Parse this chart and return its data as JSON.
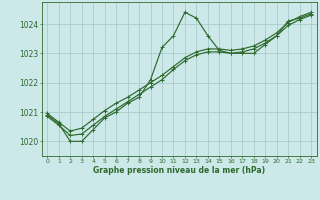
{
  "xlabel": "Graphe pression niveau de la mer (hPa)",
  "bg_color": "#cce8e8",
  "grid_color": "#aacccc",
  "line_color": "#2d6a2d",
  "marker_color": "#2d6a2d",
  "ylim": [
    1019.5,
    1024.75
  ],
  "xlim": [
    -0.5,
    23.5
  ],
  "yticks": [
    1020,
    1021,
    1022,
    1023,
    1024
  ],
  "xticks": [
    0,
    1,
    2,
    3,
    4,
    5,
    6,
    7,
    8,
    9,
    10,
    11,
    12,
    13,
    14,
    15,
    16,
    17,
    18,
    19,
    20,
    21,
    22,
    23
  ],
  "series": [
    [
      1020.9,
      1020.6,
      1020.0,
      1020.0,
      1020.4,
      1020.8,
      1021.0,
      1021.3,
      1021.5,
      1022.1,
      1023.2,
      1023.6,
      1024.4,
      1024.2,
      1023.6,
      1023.1,
      1023.0,
      1023.0,
      1023.0,
      1023.3,
      1023.6,
      1024.1,
      1024.2,
      1024.35
    ],
    [
      1020.85,
      1020.55,
      1020.2,
      1020.25,
      1020.55,
      1020.85,
      1021.1,
      1021.35,
      1021.6,
      1021.85,
      1022.1,
      1022.45,
      1022.75,
      1022.95,
      1023.05,
      1023.05,
      1023.0,
      1023.05,
      1023.15,
      1023.35,
      1023.6,
      1023.95,
      1024.15,
      1024.3
    ],
    [
      1020.95,
      1020.65,
      1020.35,
      1020.45,
      1020.75,
      1021.05,
      1021.3,
      1021.5,
      1021.75,
      1022.0,
      1022.25,
      1022.55,
      1022.85,
      1023.05,
      1023.15,
      1023.15,
      1023.1,
      1023.15,
      1023.25,
      1023.45,
      1023.7,
      1024.05,
      1024.25,
      1024.4
    ]
  ]
}
